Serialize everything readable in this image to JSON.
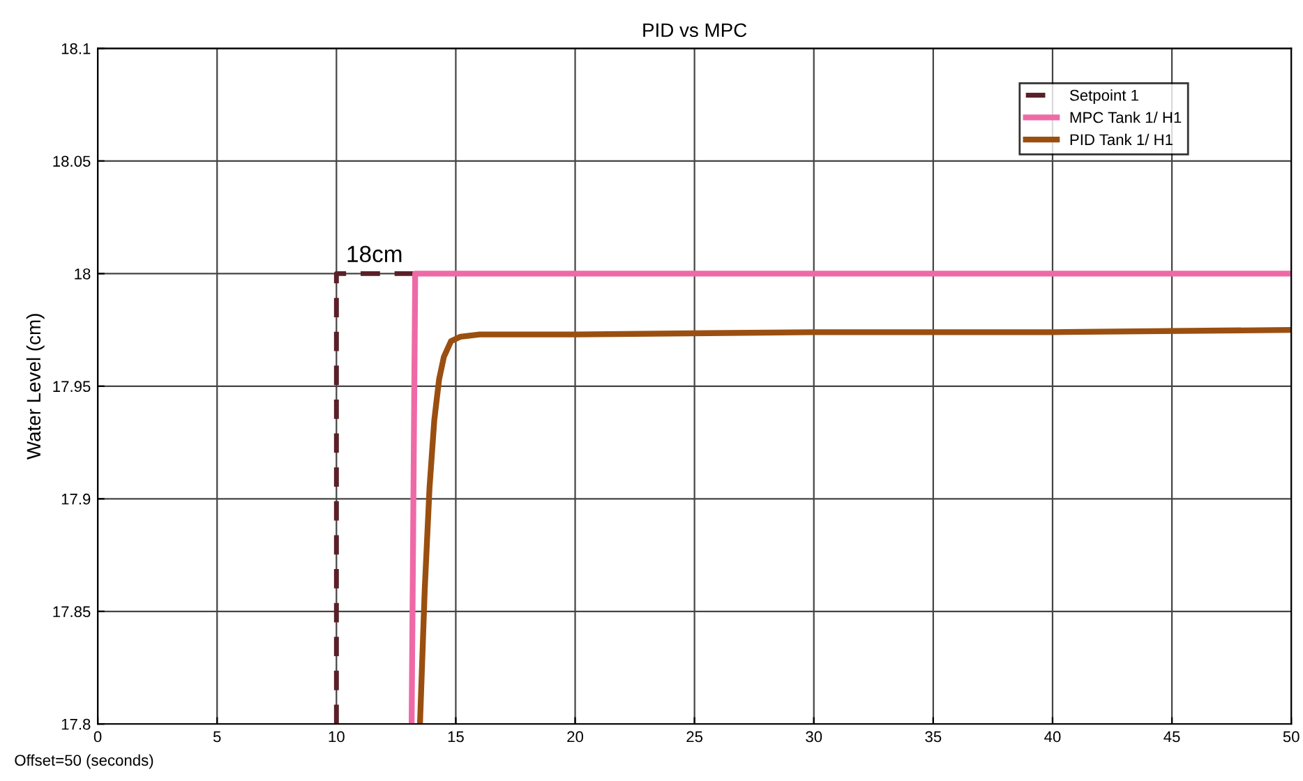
{
  "chart_data": {
    "type": "line",
    "title": "PID vs MPC",
    "xlabel": "Offset=50 (seconds)",
    "ylabel": "Water Level (cm)",
    "xlim": [
      0,
      50
    ],
    "ylim": [
      17.8,
      18.1
    ],
    "xticks": [
      0,
      5,
      10,
      15,
      20,
      25,
      30,
      35,
      40,
      45,
      50
    ],
    "yticks": [
      17.8,
      17.85,
      17.9,
      17.95,
      18,
      18.05,
      18.1
    ],
    "grid": true,
    "legend": "top right",
    "annotations": [
      {
        "text": "18cm",
        "x": 10.4,
        "y": 18.003
      }
    ],
    "series": [
      {
        "name": "Setpoint 1",
        "color": "#5a2028",
        "line_style": "dashed",
        "x": [
          10,
          10,
          13.3
        ],
        "values": [
          17.8,
          18,
          18
        ]
      },
      {
        "name": "MPC Tank 1/ H1",
        "color": "#ee6aa7",
        "line_style": "solid",
        "x": [
          13.15,
          13.3,
          50
        ],
        "values": [
          17.8,
          18,
          18
        ]
      },
      {
        "name": "PID Tank 1/ H1",
        "color": "#9a4f10",
        "line_style": "solid",
        "x": [
          13.5,
          13.7,
          13.9,
          14.1,
          14.3,
          14.5,
          14.8,
          15.2,
          16,
          20,
          30,
          40,
          50
        ],
        "values": [
          17.8,
          17.86,
          17.905,
          17.935,
          17.953,
          17.963,
          17.97,
          17.972,
          17.973,
          17.973,
          17.974,
          17.974,
          17.975
        ]
      }
    ]
  }
}
